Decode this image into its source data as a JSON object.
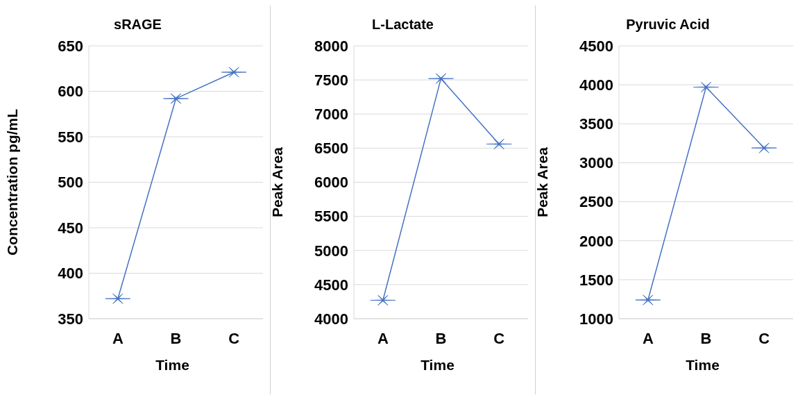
{
  "chart_data": [
    {
      "type": "line",
      "title": "sRAGE",
      "xlabel": "Time",
      "ylabel": "Concentration pg/mL",
      "categories": [
        "A",
        "B",
        "C"
      ],
      "series": [
        {
          "color": "#4472c4",
          "values": [
            372,
            592,
            621
          ]
        }
      ],
      "ylim": [
        350,
        650
      ],
      "yticks": [
        350,
        400,
        450,
        500,
        550,
        600,
        650
      ],
      "grid": "y",
      "marker": "cross",
      "line_style": "solid"
    },
    {
      "type": "line",
      "title": "L-Lactate",
      "xlabel": "Time",
      "ylabel": "Peak Area",
      "categories": [
        "A",
        "B",
        "C"
      ],
      "series": [
        {
          "color": "#4472c4",
          "values": [
            4270,
            7520,
            6560
          ]
        }
      ],
      "ylim": [
        4000,
        8000
      ],
      "yticks": [
        4000,
        4500,
        5000,
        5500,
        6000,
        6500,
        7000,
        7500,
        8000
      ],
      "grid": "y",
      "marker": "cross",
      "line_style": "solid"
    },
    {
      "type": "line",
      "title": "Pyruvic Acid",
      "xlabel": "Time",
      "ylabel": "Peak Area",
      "categories": [
        "A",
        "B",
        "C"
      ],
      "series": [
        {
          "color": "#4472c4",
          "values": [
            1240,
            3970,
            3190
          ]
        }
      ],
      "ylim": [
        1000,
        4500
      ],
      "yticks": [
        1000,
        1500,
        2000,
        2500,
        3000,
        3500,
        4000,
        4500
      ],
      "grid": "y",
      "marker": "cross",
      "line_style": "solid"
    }
  ]
}
